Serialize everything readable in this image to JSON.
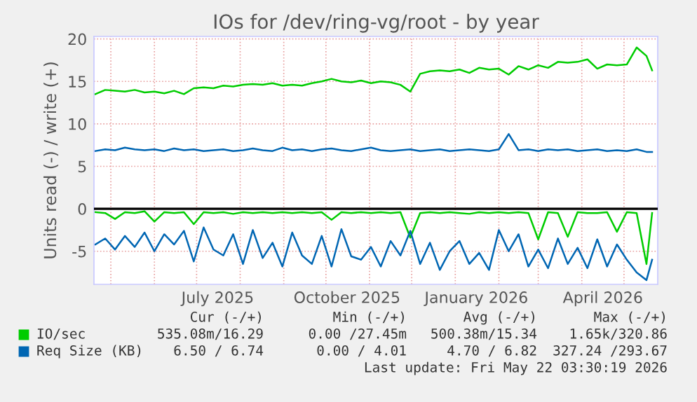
{
  "chart_data": {
    "type": "line",
    "title": "IOs for /dev/ring-vg/root - by year",
    "ylabel": "Units read (-) / write (+)",
    "x": [
      "2025-04-20",
      "2025-04-27",
      "2025-05-04",
      "2025-05-11",
      "2025-05-18",
      "2025-05-25",
      "2025-06-01",
      "2025-06-08",
      "2025-06-15",
      "2025-06-22",
      "2025-06-29",
      "2025-07-06",
      "2025-07-13",
      "2025-07-20",
      "2025-07-27",
      "2025-08-03",
      "2025-08-10",
      "2025-08-17",
      "2025-08-24",
      "2025-08-31",
      "2025-09-07",
      "2025-09-14",
      "2025-09-21",
      "2025-09-28",
      "2025-10-05",
      "2025-10-12",
      "2025-10-19",
      "2025-10-26",
      "2025-11-02",
      "2025-11-09",
      "2025-11-16",
      "2025-11-23",
      "2025-11-30",
      "2025-12-07",
      "2025-12-14",
      "2025-12-21",
      "2025-12-28",
      "2026-01-04",
      "2026-01-11",
      "2026-01-18",
      "2026-01-25",
      "2026-02-01",
      "2026-02-08",
      "2026-02-15",
      "2026-02-22",
      "2026-03-01",
      "2026-03-08",
      "2026-03-15",
      "2026-03-22",
      "2026-03-29",
      "2026-04-05",
      "2026-04-12",
      "2026-04-19",
      "2026-04-26",
      "2026-05-03",
      "2026-05-10",
      "2026-05-17",
      "2026-05-21"
    ],
    "series": [
      {
        "name": "IO/sec",
        "color": "#00cc00",
        "values": [
          13.5,
          14.0,
          13.9,
          13.8,
          14.0,
          13.7,
          13.8,
          13.6,
          13.9,
          13.5,
          14.2,
          14.3,
          14.2,
          14.5,
          14.4,
          14.6,
          14.7,
          14.6,
          14.8,
          14.5,
          14.6,
          14.5,
          14.8,
          15.0,
          15.3,
          15.0,
          14.9,
          15.1,
          14.8,
          15.0,
          14.9,
          14.6,
          13.8,
          15.9,
          16.2,
          16.3,
          16.2,
          16.4,
          16.0,
          16.6,
          16.4,
          16.5,
          15.8,
          16.8,
          16.4,
          16.9,
          16.6,
          17.3,
          17.2,
          17.3,
          17.6,
          16.5,
          17.0,
          16.9,
          17.0,
          19.0,
          18.0,
          16.3
        ]
      },
      {
        "name": "Req Size (KB)",
        "color": "#0066b3",
        "values": [
          6.8,
          7.0,
          6.9,
          7.2,
          7.0,
          6.9,
          7.0,
          6.8,
          7.1,
          6.9,
          7.0,
          6.8,
          6.9,
          7.0,
          6.8,
          6.9,
          7.1,
          6.9,
          6.8,
          7.2,
          6.9,
          7.0,
          6.8,
          7.0,
          7.1,
          6.9,
          6.8,
          7.0,
          7.2,
          6.9,
          6.8,
          6.9,
          7.0,
          6.8,
          6.9,
          7.0,
          6.8,
          6.9,
          7.0,
          6.9,
          6.8,
          7.0,
          8.8,
          6.9,
          7.0,
          6.8,
          7.0,
          6.9,
          7.0,
          6.8,
          6.9,
          7.0,
          6.8,
          6.9,
          6.8,
          7.0,
          6.7,
          6.7
        ]
      },
      {
        "color": "#00cc00",
        "values": [
          -0.4,
          -0.5,
          -1.2,
          -0.4,
          -0.5,
          -0.3,
          -1.5,
          -0.4,
          -0.5,
          -0.4,
          -1.8,
          -0.4,
          -0.5,
          -0.4,
          -0.6,
          -0.4,
          -0.5,
          -0.4,
          -0.5,
          -0.4,
          -0.5,
          -0.4,
          -0.5,
          -0.4,
          -1.3,
          -0.4,
          -0.5,
          -0.4,
          -0.5,
          -0.4,
          -0.5,
          -0.4,
          -3.4,
          -0.5,
          -0.4,
          -0.5,
          -0.4,
          -0.5,
          -0.6,
          -0.4,
          -0.5,
          -0.4,
          -0.5,
          -0.4,
          -0.5,
          -3.6,
          -0.4,
          -0.5,
          -3.3,
          -0.4,
          -0.5,
          -0.5,
          -0.4,
          -2.7,
          -0.4,
          -0.5,
          -6.5,
          -0.5
        ]
      },
      {
        "color": "#0066b3",
        "values": [
          -4.2,
          -3.5,
          -4.8,
          -3.2,
          -4.5,
          -2.8,
          -5.0,
          -3.0,
          -4.2,
          -2.6,
          -6.2,
          -2.2,
          -4.8,
          -5.5,
          -3.0,
          -6.5,
          -2.5,
          -5.8,
          -4.0,
          -6.8,
          -2.8,
          -5.5,
          -6.5,
          -3.2,
          -6.8,
          -2.4,
          -5.6,
          -6.0,
          -4.5,
          -6.8,
          -3.8,
          -5.5,
          -2.6,
          -6.5,
          -4.0,
          -7.2,
          -5.0,
          -3.8,
          -6.5,
          -5.2,
          -7.2,
          -2.5,
          -5.0,
          -3.0,
          -6.8,
          -4.8,
          -7.0,
          -3.5,
          -6.5,
          -4.6,
          -7.0,
          -3.6,
          -6.8,
          -4.2,
          -6.0,
          -7.5,
          -8.4,
          -6.0
        ]
      }
    ],
    "xlim": [
      "2025-04-19",
      "2026-05-25"
    ],
    "xticks": [
      {
        "value": "2025-05-01",
        "label": null
      },
      {
        "value": "2025-06-01",
        "label": null
      },
      {
        "value": "2025-07-01",
        "label": null
      },
      {
        "value": "2025-07-16",
        "label": "July 2025"
      },
      {
        "value": "2025-08-01",
        "label": null
      },
      {
        "value": "2025-09-01",
        "label": null
      },
      {
        "value": "2025-10-01",
        "label": null
      },
      {
        "value": "2025-10-16",
        "label": "October 2025"
      },
      {
        "value": "2025-11-01",
        "label": null
      },
      {
        "value": "2025-12-01",
        "label": null
      },
      {
        "value": "2026-01-01",
        "label": null
      },
      {
        "value": "2026-01-16",
        "label": "January 2026"
      },
      {
        "value": "2026-02-01",
        "label": null
      },
      {
        "value": "2026-03-01",
        "label": null
      },
      {
        "value": "2026-04-01",
        "label": null
      },
      {
        "value": "2026-04-16",
        "label": "April 2026"
      },
      {
        "value": "2026-05-01",
        "label": null
      }
    ],
    "ylim": [
      -8.9,
      20.3
    ],
    "yticks": [
      {
        "value": -5,
        "label": "-5"
      },
      0,
      5,
      10,
      15,
      20
    ],
    "ref_lines": [
      {
        "axis": "y",
        "value": 0,
        "color": "#000000"
      }
    ],
    "grid": true,
    "legend": "bottom",
    "annotations": [
      "Cur (-/+)",
      "Min (-/+)",
      "Avg (-/+)",
      "Max (-/+)",
      "535.08m/16.29",
      "0.00 /27.45m",
      "500.38m/15.34",
      "1.65k/320.86",
      "6.50 / 6.74",
      "0.00 / 4.01",
      "4.70 / 6.82",
      "327.24 /293.67",
      "Last update: Fri May 22 03:30:19 2026"
    ]
  }
}
